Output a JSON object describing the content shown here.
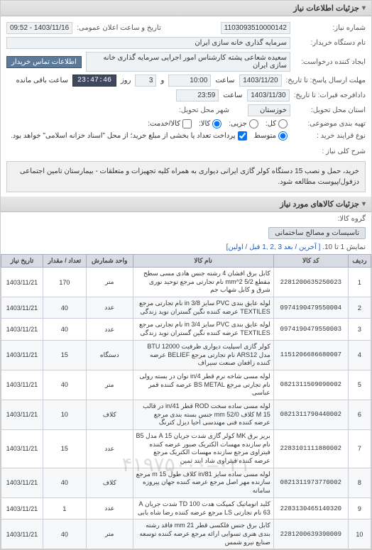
{
  "panel_title": "جزئیات اطلاعات نیاز",
  "fields": {
    "need_no_lbl": "شماره نیاز:",
    "need_no": "1103093510000142",
    "pub_datetime_lbl": "تاریخ و ساعت اعلان عمومی:",
    "pub_datetime": "1403/11/16 - 09:52",
    "buyer_lbl": "نام دستگاه خریدار:",
    "buyer": "سرمایه گذاری خانه سازی ایران",
    "requester_lbl": "ایجاد کننده درخواست:",
    "requester": "سعیده شعاعی پشته کارشناس امور اجرایی سرمایه گذاری خانه سازی ایران",
    "contact_btn": "اطلاعات تماس خریدار",
    "resp_deadline_lbl": "مهلت ارسال پاسخ: تا تاریخ:",
    "resp_date": "1403/11/20",
    "time_lbl": "ساعت",
    "resp_time": "10:00",
    "step_lbl": "و",
    "step_val": "3",
    "remain_lbl": "روز",
    "countdown": "23:47:46",
    "remain_suffix": "ساعت باقی مانده",
    "proposal_lbl": "دادافرجه قبرات: تا تاریخ:",
    "proposal_date": "1403/11/30",
    "proposal_time": "23:59",
    "address_lbl": "استان محل تحویل:",
    "address": "خوزستان",
    "city_lbl": "شهر محل تحویل:",
    "partial_lbl": "تهیه بندی موضوعی:",
    "opt_all": "کل:",
    "opt_part": "جزیی:",
    "opt_item": "کالا:",
    "opt_check": "کالا/خدمت:",
    "price_lbl": "نوع قرایند خرید :",
    "price_low": "متوسط",
    "price_note": "پرداخت تعداد یا بخشی از مبلغ خرید؛ از محل \"اسناد خزانه اسلامی\" خواهد بود.",
    "desc_lbl": "شرح کلی نیاز :",
    "desc": "خرید، حمل و نصب 15 دستگاه کولر گازی ایرانی دیواری به همراه کلیه تجهیزات و متعلقات - بیمارستان تامین اجتماعی دزفول/پیوست مطالعه شود.",
    "group_title": "جزئیات کالاهای مورد نیاز",
    "group_lbl": "گروه کالا:",
    "group_chip": "تاسیسات و مصالح ساختمانی",
    "pager_text": "نمایش 1 تا 10.",
    "pager_links": "[ آخرین / بعد  3 ,2 ,1  قبل / اولین]"
  },
  "columns": [
    "ردیف",
    "کد کالا",
    "نام کالا",
    "واحد شمارش",
    "تعداد / مقدار",
    "تاریخ نیاز"
  ],
  "rows": [
    {
      "n": "1",
      "code": "2281200635250023",
      "name": "کابل برق افشان 4 رشته جنس هادی مسی سطح مقطع 5/2 mm^2 نام تجارتی مرجع توحید نوری شرق و کابل شهاب جم",
      "unit": "متر",
      "qty": "170",
      "date": "1403/11/21"
    },
    {
      "n": "2",
      "code": "0974190479550004",
      "name": "لوله عایق بندی PVC سایز 8/in 3 نام تجارتی مرجع TEXTILES عرضه کننده نگین گستران نوید زندگی",
      "unit": "عدد",
      "qty": "40",
      "date": "1403/11/21"
    },
    {
      "n": "3",
      "code": "0974190479550003",
      "name": "لوله عایق بندی PVC سایز 4/in 3 نام تجارتی مرجع TEXTILES عرضه کننده نگین گستران نوید زندگی",
      "unit": "عدد",
      "qty": "40",
      "date": "1403/11/21"
    },
    {
      "n": "4",
      "code": "1151206686680007",
      "name": "کولر گازی اسپلیت دیواری ظرفیت 12000 BTU مدل ARS12 نام تجارتی مرجع BELIEF عرضه کننده زافعان صنعت سیراف",
      "unit": "دستگاه",
      "qty": "15",
      "date": "1403/11/21"
    },
    {
      "n": "5",
      "code": "0821311509090002",
      "name": "لوله مسی شاخه نرم قطر 4/in توان در بسته رولی نام تجارتی مرجع BS METAL عرضه کننده قمر عباسی",
      "unit": "متر",
      "qty": "40",
      "date": "1403/11/21"
    },
    {
      "n": "6",
      "code": "0821311790440002",
      "name": "لوله مسی ساده سخت ROD قطر 41/in در قالب M 15 کلاف mm 52/0 جنس بسته بندی مرجع عرضه کننده فنی مهندسی احیا دیزل کترنگ",
      "unit": "کلاف",
      "qty": "10",
      "date": "1403/11/21"
    },
    {
      "n": "7",
      "code": "2283101111880002",
      "name": "بریز برق MK کولر گازی شدت جریان 15 A مدل B5 نام سازنده مهسات الکتریک صبور عرضه کننده فیتراوی مرجع سازنده مهسات الکتریک مرجع عرضه کننده فیتراوی شاد ایتد ثمین",
      "unit": "عدد",
      "qty": "15",
      "date": "1403/11/21"
    },
    {
      "n": "8",
      "code": "0821311973770002",
      "name": "لوله مسی ساده سایز 81/in کلاف طول m 15 مرجع سازنده مهر اصل مرجع عرضه کننده جهان پیروزه سامانه",
      "unit": "کلاف",
      "qty": "40",
      "date": "1403/11/21"
    },
    {
      "n": "9",
      "code": "2283130465140320",
      "name": "کلید اتوماتیک کمپکت هدت TD 100 شدت جریان A 63 نام تجارتی LS مرجع عرضه کننده رضا شاه بابی",
      "unit": "عدد",
      "qty": "1",
      "date": "1403/11/21"
    },
    {
      "n": "10",
      "code": "2281200639390009",
      "name": "کابل برق جنس فلکسی قطر 21 mm فاقد رشته بندی هنری تسوایی ارائه مرجع عرضه کننده توسعه صنایع نیرو شمس",
      "unit": "متر",
      "qty": "40",
      "date": "1403/11/21"
    }
  ],
  "watermark": "۰۲۱–۴۱۹۷۵۰۰۰"
}
